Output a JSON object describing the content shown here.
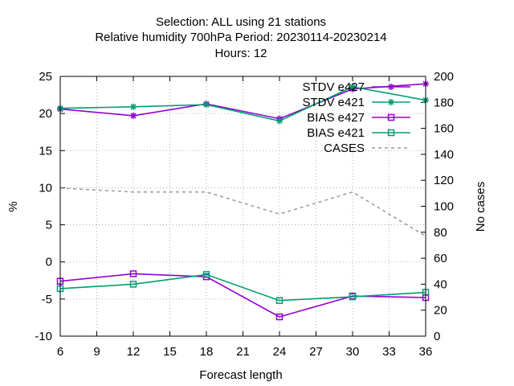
{
  "chart_data": {
    "type": "line",
    "title_lines": [
      "Selection: ALL using    21 stations",
      "Relative humidity 700hPa   Period: 20230114-20230214",
      "Hours:  12"
    ],
    "xlabel": "Forecast length",
    "ylabel": "%",
    "y2label": "No cases",
    "x": [
      6,
      12,
      18,
      24,
      30,
      36
    ],
    "xticks": [
      6,
      9,
      12,
      15,
      18,
      21,
      24,
      27,
      30,
      33,
      36
    ],
    "xlim": [
      6,
      36
    ],
    "ylim": [
      -10,
      25
    ],
    "yticks": [
      -10,
      -5,
      0,
      5,
      10,
      15,
      20,
      25
    ],
    "y2lim": [
      0,
      200
    ],
    "y2ticks": [
      0,
      20,
      40,
      60,
      80,
      100,
      120,
      140,
      160,
      180,
      200
    ],
    "grid": true,
    "legend_position": "top-right",
    "series": [
      {
        "name": "STDV e427",
        "axis": "y1",
        "color": "#9400d3",
        "marker": "star",
        "dash": false,
        "values": [
          20.6,
          19.7,
          21.3,
          19.3,
          23.3,
          24.0
        ]
      },
      {
        "name": "STDV e421",
        "axis": "y1",
        "color": "#009e73",
        "marker": "star",
        "dash": false,
        "values": [
          20.7,
          20.9,
          21.2,
          19.0,
          23.6,
          21.8
        ]
      },
      {
        "name": "BIAS e427",
        "axis": "y1",
        "color": "#9400d3",
        "marker": "square",
        "dash": false,
        "values": [
          -2.6,
          -1.6,
          -2.0,
          -7.4,
          -4.6,
          -4.8
        ]
      },
      {
        "name": "BIAS e421",
        "axis": "y1",
        "color": "#009e73",
        "marker": "square",
        "dash": false,
        "values": [
          -3.6,
          -3.0,
          -1.7,
          -5.2,
          -4.7,
          -4.1
        ]
      },
      {
        "name": "CASES",
        "axis": "y2",
        "color": "#999999",
        "marker": "none",
        "dash": true,
        "values": [
          114,
          111,
          111,
          94,
          111,
          77
        ]
      }
    ]
  }
}
